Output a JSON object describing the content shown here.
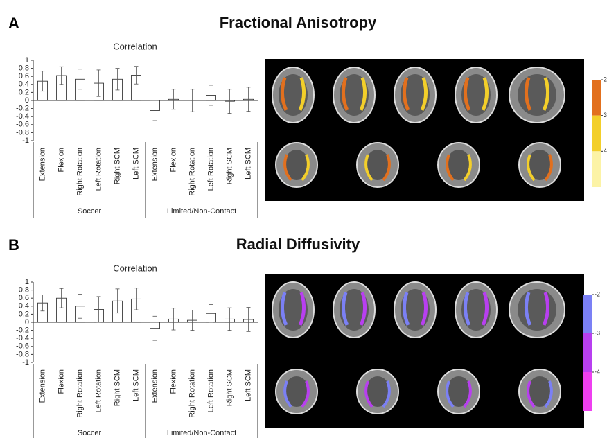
{
  "figure": {
    "panels": [
      {
        "label": "A",
        "title": "Fractional Anisotropy",
        "colorbar": {
          "colors": [
            "#e2701e",
            "#f3cf2a",
            "#fcf3a6"
          ],
          "lim": [
            2,
            5
          ],
          "ticks": [
            2,
            3,
            4
          ]
        }
      },
      {
        "label": "B",
        "title": "Radial Diffusivity",
        "colorbar": {
          "colors": [
            "#7b80f5",
            "#b83ff0",
            "#ee3ff0"
          ],
          "lim": [
            -2,
            -5
          ],
          "ticks": [
            -2,
            -3,
            -4
          ]
        }
      }
    ]
  },
  "chart_data": [
    {
      "type": "bar",
      "title": "Correlation",
      "groups": [
        {
          "name": "Soccer",
          "categories": [
            "Extension",
            "Flexion",
            "Right Rotation",
            "Left Rotation",
            "Right SCM",
            "Left SCM"
          ]
        },
        {
          "name": "Limited/Non-Contact",
          "categories": [
            "Extension",
            "Flexion",
            "Right Rotation",
            "Left Rotation",
            "Right SCM",
            "Left SCM"
          ]
        }
      ],
      "values": [
        0.48,
        0.62,
        0.53,
        0.43,
        0.53,
        0.63,
        -0.25,
        0.03,
        0.0,
        0.13,
        -0.02,
        0.03
      ],
      "errors": [
        0.25,
        0.22,
        0.25,
        0.33,
        0.27,
        0.22,
        0.25,
        0.25,
        0.28,
        0.25,
        0.3,
        0.3
      ],
      "ylim": [
        -1,
        1
      ],
      "yticks": [
        1,
        0.8,
        0.6,
        0.4,
        0.2,
        0,
        -0.2,
        -0.4,
        -0.6,
        -0.8,
        -1
      ]
    },
    {
      "type": "bar",
      "title": "Correlation",
      "groups": [
        {
          "name": "Soccer",
          "categories": [
            "Extension",
            "Flexion",
            "Right Rotation",
            "Left Rotation",
            "Right SCM",
            "Left SCM"
          ]
        },
        {
          "name": "Limited/Non-Contact",
          "categories": [
            "Extension",
            "Flexion",
            "Right Rotation",
            "Left Rotation",
            "Right SCM",
            "Left SCM"
          ]
        }
      ],
      "values": [
        0.48,
        0.6,
        0.4,
        0.32,
        0.53,
        0.58,
        -0.15,
        0.08,
        0.05,
        0.22,
        0.08,
        0.07
      ],
      "errors": [
        0.2,
        0.24,
        0.3,
        0.32,
        0.3,
        0.27,
        0.3,
        0.27,
        0.25,
        0.22,
        0.28,
        0.3
      ],
      "ylim": [
        -1,
        1
      ],
      "yticks": [
        1,
        0.8,
        0.6,
        0.4,
        0.2,
        0,
        -0.2,
        -0.4,
        -0.6,
        -0.8,
        -1
      ]
    }
  ]
}
